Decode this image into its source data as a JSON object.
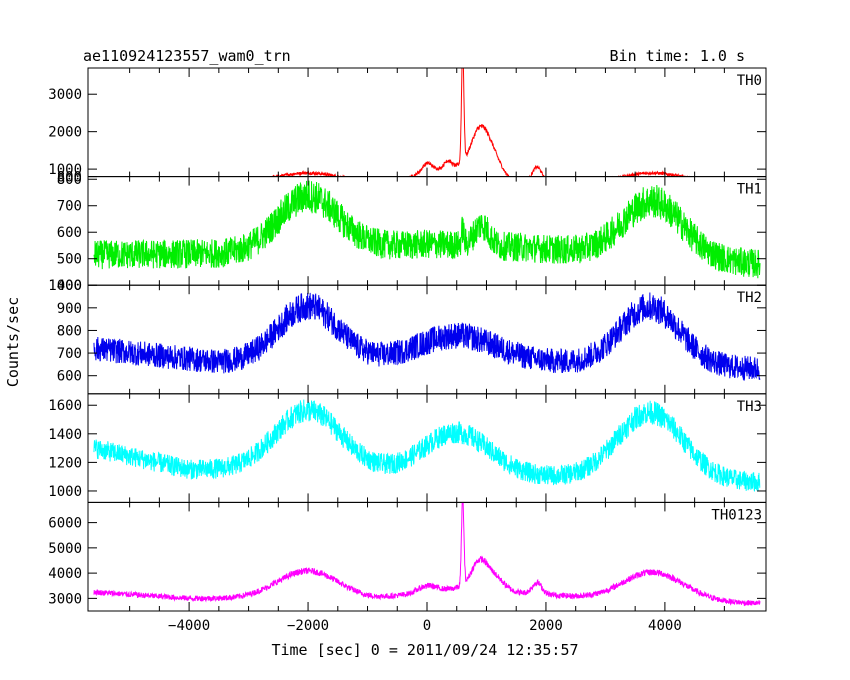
{
  "title_left": "ae110924123557_wam0_trn",
  "title_right": "Bin time: 1.0 s",
  "xlabel": "Time [sec] 0 = 2011/09/24 12:35:57",
  "ylabel": "Counts/sec",
  "chart_data": {
    "type": "line",
    "xlim": [
      -5700,
      5700
    ],
    "x_ticks": [
      -4000,
      -2000,
      0,
      2000,
      4000
    ],
    "x_tick_labels": [
      "−4000",
      "−2000",
      "0",
      "2000",
      "4000"
    ],
    "x_range": [
      -5600,
      5600
    ],
    "grid": false,
    "legend": "none",
    "panels": [
      {
        "name": "TH0",
        "color": "#ff0000",
        "ylim": [
          800,
          3700
        ],
        "y_ticks": [
          800,
          1000,
          2000,
          3000
        ],
        "y_tick_labels": [
          "800",
          "1000",
          "2000",
          "3000"
        ],
        "noise": 35,
        "features": [
          {
            "center": -2000,
            "width": 500,
            "amp": 230,
            "shape": "gaussian"
          },
          {
            "center": 3800,
            "width": 500,
            "amp": 250,
            "shape": "gaussian"
          },
          {
            "center": 0,
            "width": 80,
            "amp": 200,
            "shape": "gaussian"
          },
          {
            "center": 350,
            "width": 60,
            "amp": 200,
            "shape": "gaussian"
          },
          {
            "center": 600,
            "width": 20,
            "amp": 3000,
            "shape": "gaussian"
          },
          {
            "center": 880,
            "width": 150,
            "amp": 1050,
            "shape": "gaussian"
          },
          {
            "center": 1100,
            "width": 150,
            "amp": 500,
            "shape": "gaussian"
          },
          {
            "center": 1850,
            "width": 80,
            "amp": 400,
            "shape": "gaussian"
          }
        ],
        "baseline": [
          [
            -5600,
            680
          ],
          [
            0,
            660
          ],
          [
            5600,
            640
          ]
        ],
        "hump_extra": [
          [
            -500,
            0
          ],
          [
            0,
            300
          ],
          [
            500,
            400
          ],
          [
            1500,
            0
          ]
        ]
      },
      {
        "name": "TH1",
        "color": "#00ee00",
        "ylim": [
          400,
          810
        ],
        "y_ticks": [
          400,
          500,
          600,
          700,
          800
        ],
        "y_tick_labels": [
          "400",
          "500",
          "600",
          "700",
          "800"
        ],
        "noise": 55,
        "features": [
          {
            "center": -2000,
            "width": 500,
            "amp": 205,
            "shape": "gaussian"
          },
          {
            "center": 3800,
            "width": 500,
            "amp": 210,
            "shape": "gaussian"
          },
          {
            "center": 600,
            "width": 20,
            "amp": 60,
            "shape": "gaussian"
          },
          {
            "center": 920,
            "width": 120,
            "amp": 80,
            "shape": "gaussian"
          }
        ],
        "baseline": [
          [
            -5600,
            515
          ],
          [
            -3000,
            520
          ],
          [
            0,
            555
          ],
          [
            1500,
            545
          ],
          [
            3000,
            520
          ],
          [
            5600,
            480
          ]
        ],
        "hump_extra": []
      },
      {
        "name": "TH2",
        "color": "#0000ee",
        "ylim": [
          520,
          1000
        ],
        "y_ticks": [
          600,
          700,
          800,
          900,
          1000
        ],
        "y_tick_labels": [
          "600",
          "700",
          "800",
          "900",
          "1000"
        ],
        "noise": 55,
        "features": [
          {
            "center": -2000,
            "width": 500,
            "amp": 245,
            "shape": "gaussian"
          },
          {
            "center": 3750,
            "width": 500,
            "amp": 260,
            "shape": "gaussian"
          },
          {
            "center": 500,
            "width": 650,
            "amp": 115,
            "shape": "gaussian"
          }
        ],
        "baseline": [
          [
            -5600,
            720
          ],
          [
            -3500,
            660
          ],
          [
            -1000,
            665
          ],
          [
            2000,
            660
          ],
          [
            5600,
            630
          ]
        ],
        "hump_extra": []
      },
      {
        "name": "TH3",
        "color": "#00ffff",
        "ylim": [
          920,
          1680
        ],
        "y_ticks": [
          1000,
          1200,
          1400,
          1600
        ],
        "y_tick_labels": [
          "1000",
          "1200",
          "1400",
          "1600"
        ],
        "noise": 70,
        "features": [
          {
            "center": -2000,
            "width": 550,
            "amp": 420,
            "shape": "gaussian"
          },
          {
            "center": 3750,
            "width": 550,
            "amp": 470,
            "shape": "gaussian"
          },
          {
            "center": 500,
            "width": 550,
            "amp": 290,
            "shape": "gaussian"
          }
        ],
        "baseline": [
          [
            -5600,
            1300
          ],
          [
            -4000,
            1150
          ],
          [
            -1000,
            1140
          ],
          [
            2000,
            1100
          ],
          [
            5600,
            1060
          ]
        ],
        "hump_extra": []
      },
      {
        "name": "TH0123",
        "color": "#ff00ff",
        "ylim": [
          2500,
          6800
        ],
        "y_ticks": [
          3000,
          4000,
          5000,
          6000
        ],
        "y_tick_labels": [
          "3000",
          "4000",
          "5000",
          "6000"
        ],
        "noise": 110,
        "features": [
          {
            "center": -2000,
            "width": 520,
            "amp": 1120,
            "shape": "gaussian"
          },
          {
            "center": 3800,
            "width": 520,
            "amp": 1130,
            "shape": "gaussian"
          },
          {
            "center": 0,
            "width": 150,
            "amp": 250,
            "shape": "gaussian"
          },
          {
            "center": 600,
            "width": 20,
            "amp": 3500,
            "shape": "gaussian"
          },
          {
            "center": 880,
            "width": 140,
            "amp": 1100,
            "shape": "gaussian"
          },
          {
            "center": 1150,
            "width": 150,
            "amp": 500,
            "shape": "gaussian"
          },
          {
            "center": 1850,
            "width": 80,
            "amp": 450,
            "shape": "gaussian"
          }
        ],
        "baseline": [
          [
            -5600,
            3250
          ],
          [
            -4000,
            3000
          ],
          [
            -1000,
            2950
          ],
          [
            0,
            3250
          ],
          [
            500,
            3400
          ],
          [
            2000,
            3150
          ],
          [
            3000,
            2950
          ],
          [
            5600,
            2800
          ]
        ],
        "hump_extra": []
      }
    ]
  }
}
